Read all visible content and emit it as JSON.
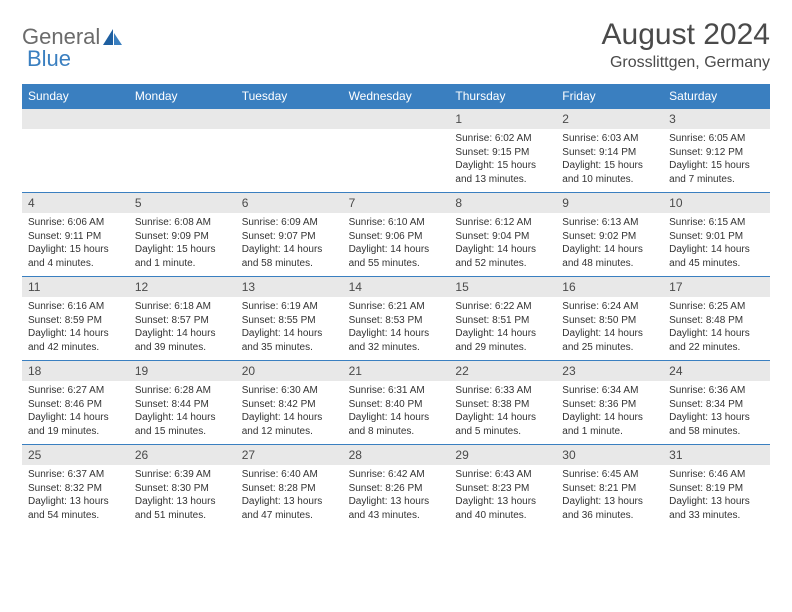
{
  "logo": {
    "text1": "General",
    "text2": "Blue"
  },
  "title": {
    "month": "August 2024",
    "location": "Grosslittgen, Germany"
  },
  "colors": {
    "header_bg": "#3a7fc0",
    "header_text": "#ffffff",
    "daynum_bg": "#e8e8e8",
    "week_border": "#3a7fc0",
    "body_text": "#333333"
  },
  "weekdays": [
    "Sunday",
    "Monday",
    "Tuesday",
    "Wednesday",
    "Thursday",
    "Friday",
    "Saturday"
  ],
  "weeks": [
    [
      {
        "day": "",
        "sunrise": "",
        "sunset": "",
        "daylight1": "",
        "daylight2": ""
      },
      {
        "day": "",
        "sunrise": "",
        "sunset": "",
        "daylight1": "",
        "daylight2": ""
      },
      {
        "day": "",
        "sunrise": "",
        "sunset": "",
        "daylight1": "",
        "daylight2": ""
      },
      {
        "day": "",
        "sunrise": "",
        "sunset": "",
        "daylight1": "",
        "daylight2": ""
      },
      {
        "day": "1",
        "sunrise": "Sunrise: 6:02 AM",
        "sunset": "Sunset: 9:15 PM",
        "daylight1": "Daylight: 15 hours",
        "daylight2": "and 13 minutes."
      },
      {
        "day": "2",
        "sunrise": "Sunrise: 6:03 AM",
        "sunset": "Sunset: 9:14 PM",
        "daylight1": "Daylight: 15 hours",
        "daylight2": "and 10 minutes."
      },
      {
        "day": "3",
        "sunrise": "Sunrise: 6:05 AM",
        "sunset": "Sunset: 9:12 PM",
        "daylight1": "Daylight: 15 hours",
        "daylight2": "and 7 minutes."
      }
    ],
    [
      {
        "day": "4",
        "sunrise": "Sunrise: 6:06 AM",
        "sunset": "Sunset: 9:11 PM",
        "daylight1": "Daylight: 15 hours",
        "daylight2": "and 4 minutes."
      },
      {
        "day": "5",
        "sunrise": "Sunrise: 6:08 AM",
        "sunset": "Sunset: 9:09 PM",
        "daylight1": "Daylight: 15 hours",
        "daylight2": "and 1 minute."
      },
      {
        "day": "6",
        "sunrise": "Sunrise: 6:09 AM",
        "sunset": "Sunset: 9:07 PM",
        "daylight1": "Daylight: 14 hours",
        "daylight2": "and 58 minutes."
      },
      {
        "day": "7",
        "sunrise": "Sunrise: 6:10 AM",
        "sunset": "Sunset: 9:06 PM",
        "daylight1": "Daylight: 14 hours",
        "daylight2": "and 55 minutes."
      },
      {
        "day": "8",
        "sunrise": "Sunrise: 6:12 AM",
        "sunset": "Sunset: 9:04 PM",
        "daylight1": "Daylight: 14 hours",
        "daylight2": "and 52 minutes."
      },
      {
        "day": "9",
        "sunrise": "Sunrise: 6:13 AM",
        "sunset": "Sunset: 9:02 PM",
        "daylight1": "Daylight: 14 hours",
        "daylight2": "and 48 minutes."
      },
      {
        "day": "10",
        "sunrise": "Sunrise: 6:15 AM",
        "sunset": "Sunset: 9:01 PM",
        "daylight1": "Daylight: 14 hours",
        "daylight2": "and 45 minutes."
      }
    ],
    [
      {
        "day": "11",
        "sunrise": "Sunrise: 6:16 AM",
        "sunset": "Sunset: 8:59 PM",
        "daylight1": "Daylight: 14 hours",
        "daylight2": "and 42 minutes."
      },
      {
        "day": "12",
        "sunrise": "Sunrise: 6:18 AM",
        "sunset": "Sunset: 8:57 PM",
        "daylight1": "Daylight: 14 hours",
        "daylight2": "and 39 minutes."
      },
      {
        "day": "13",
        "sunrise": "Sunrise: 6:19 AM",
        "sunset": "Sunset: 8:55 PM",
        "daylight1": "Daylight: 14 hours",
        "daylight2": "and 35 minutes."
      },
      {
        "day": "14",
        "sunrise": "Sunrise: 6:21 AM",
        "sunset": "Sunset: 8:53 PM",
        "daylight1": "Daylight: 14 hours",
        "daylight2": "and 32 minutes."
      },
      {
        "day": "15",
        "sunrise": "Sunrise: 6:22 AM",
        "sunset": "Sunset: 8:51 PM",
        "daylight1": "Daylight: 14 hours",
        "daylight2": "and 29 minutes."
      },
      {
        "day": "16",
        "sunrise": "Sunrise: 6:24 AM",
        "sunset": "Sunset: 8:50 PM",
        "daylight1": "Daylight: 14 hours",
        "daylight2": "and 25 minutes."
      },
      {
        "day": "17",
        "sunrise": "Sunrise: 6:25 AM",
        "sunset": "Sunset: 8:48 PM",
        "daylight1": "Daylight: 14 hours",
        "daylight2": "and 22 minutes."
      }
    ],
    [
      {
        "day": "18",
        "sunrise": "Sunrise: 6:27 AM",
        "sunset": "Sunset: 8:46 PM",
        "daylight1": "Daylight: 14 hours",
        "daylight2": "and 19 minutes."
      },
      {
        "day": "19",
        "sunrise": "Sunrise: 6:28 AM",
        "sunset": "Sunset: 8:44 PM",
        "daylight1": "Daylight: 14 hours",
        "daylight2": "and 15 minutes."
      },
      {
        "day": "20",
        "sunrise": "Sunrise: 6:30 AM",
        "sunset": "Sunset: 8:42 PM",
        "daylight1": "Daylight: 14 hours",
        "daylight2": "and 12 minutes."
      },
      {
        "day": "21",
        "sunrise": "Sunrise: 6:31 AM",
        "sunset": "Sunset: 8:40 PM",
        "daylight1": "Daylight: 14 hours",
        "daylight2": "and 8 minutes."
      },
      {
        "day": "22",
        "sunrise": "Sunrise: 6:33 AM",
        "sunset": "Sunset: 8:38 PM",
        "daylight1": "Daylight: 14 hours",
        "daylight2": "and 5 minutes."
      },
      {
        "day": "23",
        "sunrise": "Sunrise: 6:34 AM",
        "sunset": "Sunset: 8:36 PM",
        "daylight1": "Daylight: 14 hours",
        "daylight2": "and 1 minute."
      },
      {
        "day": "24",
        "sunrise": "Sunrise: 6:36 AM",
        "sunset": "Sunset: 8:34 PM",
        "daylight1": "Daylight: 13 hours",
        "daylight2": "and 58 minutes."
      }
    ],
    [
      {
        "day": "25",
        "sunrise": "Sunrise: 6:37 AM",
        "sunset": "Sunset: 8:32 PM",
        "daylight1": "Daylight: 13 hours",
        "daylight2": "and 54 minutes."
      },
      {
        "day": "26",
        "sunrise": "Sunrise: 6:39 AM",
        "sunset": "Sunset: 8:30 PM",
        "daylight1": "Daylight: 13 hours",
        "daylight2": "and 51 minutes."
      },
      {
        "day": "27",
        "sunrise": "Sunrise: 6:40 AM",
        "sunset": "Sunset: 8:28 PM",
        "daylight1": "Daylight: 13 hours",
        "daylight2": "and 47 minutes."
      },
      {
        "day": "28",
        "sunrise": "Sunrise: 6:42 AM",
        "sunset": "Sunset: 8:26 PM",
        "daylight1": "Daylight: 13 hours",
        "daylight2": "and 43 minutes."
      },
      {
        "day": "29",
        "sunrise": "Sunrise: 6:43 AM",
        "sunset": "Sunset: 8:23 PM",
        "daylight1": "Daylight: 13 hours",
        "daylight2": "and 40 minutes."
      },
      {
        "day": "30",
        "sunrise": "Sunrise: 6:45 AM",
        "sunset": "Sunset: 8:21 PM",
        "daylight1": "Daylight: 13 hours",
        "daylight2": "and 36 minutes."
      },
      {
        "day": "31",
        "sunrise": "Sunrise: 6:46 AM",
        "sunset": "Sunset: 8:19 PM",
        "daylight1": "Daylight: 13 hours",
        "daylight2": "and 33 minutes."
      }
    ]
  ]
}
